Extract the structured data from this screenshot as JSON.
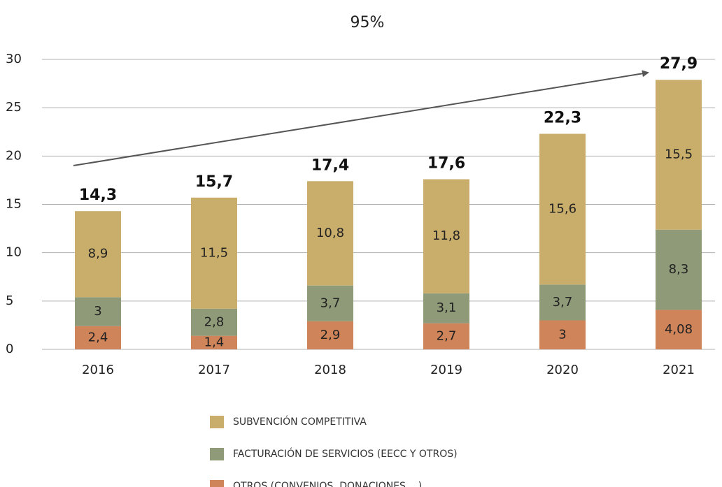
{
  "chart_data": {
    "type": "bar",
    "stacked": true,
    "title": "95%",
    "categories": [
      "2016",
      "2017",
      "2018",
      "2019",
      "2020",
      "2021"
    ],
    "series": [
      {
        "name": "OTROS (CONVENIOS, DONACIONES,...)",
        "color": "#d08459",
        "values": [
          2.4,
          1.4,
          2.9,
          2.7,
          3,
          4.08
        ],
        "value_labels": [
          "2,4",
          "1,4",
          "2,9",
          "2,7",
          "3",
          "4,08"
        ]
      },
      {
        "name": "FACTURACIÓN DE SERVICIOS (EECC Y OTROS)",
        "color": "#8f9a78",
        "values": [
          3,
          2.8,
          3.7,
          3.1,
          3.7,
          8.3
        ],
        "value_labels": [
          "3",
          "2,8",
          "3,7",
          "3,1",
          "3,7",
          "8,3"
        ]
      },
      {
        "name": "SUBVENCIÓN COMPETITIVA",
        "color": "#c9ae6b",
        "values": [
          8.9,
          11.5,
          10.8,
          11.8,
          15.6,
          15.5
        ],
        "value_labels": [
          "8,9",
          "11,5",
          "10,8",
          "11,8",
          "15,6",
          "15,5"
        ]
      }
    ],
    "totals": [
      14.3,
      15.7,
      17.4,
      17.6,
      22.3,
      27.9
    ],
    "total_labels": [
      "14,3",
      "15,7",
      "17,4",
      "17,6",
      "22,3",
      "27,9"
    ],
    "ylim": [
      0,
      30
    ],
    "yticks": [
      0,
      5,
      10,
      15,
      20,
      25,
      30
    ],
    "grid": true
  }
}
